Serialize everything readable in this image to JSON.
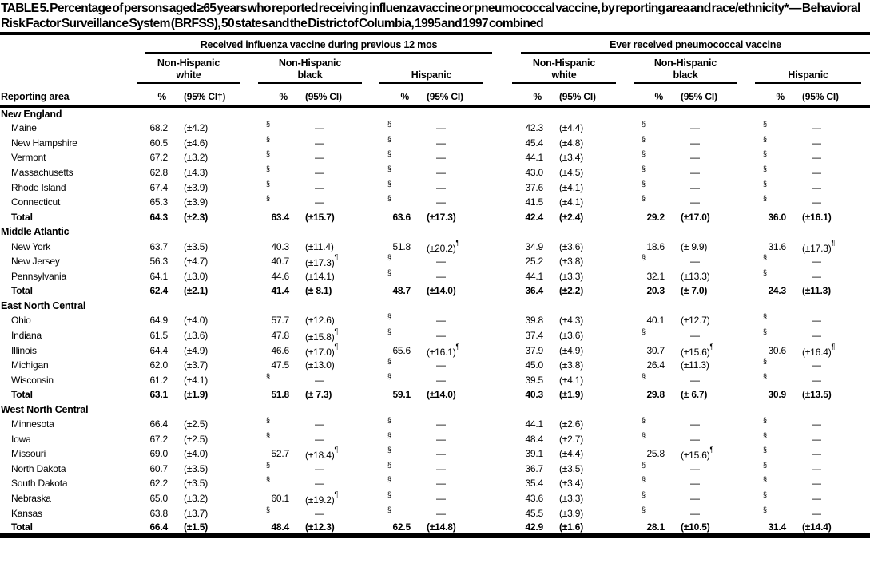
{
  "title": "TABLE 5. Percentage of persons aged ≥65 years who reported receiving influenza vaccine or pneumococcal vaccine, by reporting area and race/ethnicity* — Behavioral Risk Factor Surveillance System (BRFSS), 50 states and the District of Columbia, 1995 and 1997 combined",
  "table": {
    "reporting_area_header": "Reporting area",
    "groups": [
      {
        "label": "Received influenza vaccine during previous 12 mos",
        "subgroups": [
          {
            "label_lines": [
              "Non-Hispanic",
              "white"
            ],
            "pct": "%",
            "ci": "(95% CI†)"
          },
          {
            "label_lines": [
              "Non-Hispanic",
              "black"
            ],
            "pct": "%",
            "ci": "(95% CI)"
          },
          {
            "label_lines": [
              "Hispanic"
            ],
            "pct": "%",
            "ci": "(95% CI)"
          }
        ]
      },
      {
        "label": "Ever received pneumococcal vaccine",
        "subgroups": [
          {
            "label_lines": [
              "Non-Hispanic",
              "white"
            ],
            "pct": "%",
            "ci": "(95% CI)"
          },
          {
            "label_lines": [
              "Non-Hispanic",
              "black"
            ],
            "pct": "%",
            "ci": "(95% CI)"
          },
          {
            "label_lines": [
              "Hispanic"
            ],
            "pct": "%",
            "ci": "(95% CI)"
          }
        ]
      }
    ],
    "footnote_symbols": {
      "suppressed": "§",
      "no_estimate": "—",
      "wide_ci": "¶",
      "ci_note": "†"
    },
    "sections": [
      {
        "name": "New England",
        "rows": [
          {
            "area": "Maine",
            "bold": false,
            "cells": [
              "68.2",
              "(±4.2)",
              "§",
              "—",
              "§",
              "—",
              "42.3",
              "(±4.4)",
              "§",
              "—",
              "§",
              "—"
            ]
          },
          {
            "area": "New Hampshire",
            "bold": false,
            "cells": [
              "60.5",
              "(±4.6)",
              "§",
              "—",
              "§",
              "—",
              "45.4",
              "(±4.8)",
              "§",
              "—",
              "§",
              "—"
            ]
          },
          {
            "area": "Vermont",
            "bold": false,
            "cells": [
              "67.2",
              "(±3.2)",
              "§",
              "—",
              "§",
              "—",
              "44.1",
              "(±3.4)",
              "§",
              "—",
              "§",
              "—"
            ]
          },
          {
            "area": "Massachusetts",
            "bold": false,
            "cells": [
              "62.8",
              "(±4.3)",
              "§",
              "—",
              "§",
              "—",
              "43.0",
              "(±4.5)",
              "§",
              "—",
              "§",
              "—"
            ]
          },
          {
            "area": "Rhode Island",
            "bold": false,
            "cells": [
              "67.4",
              "(±3.9)",
              "§",
              "—",
              "§",
              "—",
              "37.6",
              "(±4.1)",
              "§",
              "—",
              "§",
              "—"
            ]
          },
          {
            "area": "Connecticut",
            "bold": false,
            "cells": [
              "65.3",
              "(±3.9)",
              "§",
              "—",
              "§",
              "—",
              "41.5",
              "(±4.1)",
              "§",
              "—",
              "§",
              "—"
            ]
          },
          {
            "area": "Total",
            "bold": true,
            "cells": [
              "64.3",
              "(±2.3)",
              "63.4",
              "(±15.7)",
              "63.6",
              "(±17.3)",
              "42.4",
              "(±2.4)",
              "29.2",
              "(±17.0)",
              "36.0",
              "(±16.1)"
            ]
          }
        ]
      },
      {
        "name": "Middle Atlantic",
        "rows": [
          {
            "area": "New York",
            "bold": false,
            "cells": [
              "63.7",
              "(±3.5)",
              "40.3",
              "(±11.4)",
              "51.8",
              "(±20.2)¶",
              "34.9",
              "(±3.6)",
              "18.6",
              "(± 9.9)",
              "31.6",
              "(±17.3)¶"
            ]
          },
          {
            "area": "New Jersey",
            "bold": false,
            "cells": [
              "56.3",
              "(±4.7)",
              "40.7",
              "(±17.3)¶",
              "§",
              "—",
              "25.2",
              "(±3.8)",
              "§",
              "—",
              "§",
              "—"
            ]
          },
          {
            "area": "Pennsylvania",
            "bold": false,
            "cells": [
              "64.1",
              "(±3.0)",
              "44.6",
              "(±14.1)",
              "§",
              "—",
              "44.1",
              "(±3.3)",
              "32.1",
              "(±13.3)",
              "§",
              "—"
            ]
          },
          {
            "area": "Total",
            "bold": true,
            "cells": [
              "62.4",
              "(±2.1)",
              "41.4",
              "(± 8.1)",
              "48.7",
              "(±14.0)",
              "36.4",
              "(±2.2)",
              "20.3",
              "(± 7.0)",
              "24.3",
              "(±11.3)"
            ]
          }
        ]
      },
      {
        "name": "East North Central",
        "rows": [
          {
            "area": "Ohio",
            "bold": false,
            "cells": [
              "64.9",
              "(±4.0)",
              "57.7",
              "(±12.6)",
              "§",
              "—",
              "39.8",
              "(±4.3)",
              "40.1",
              "(±12.7)",
              "§",
              "—"
            ]
          },
          {
            "area": "Indiana",
            "bold": false,
            "cells": [
              "61.5",
              "(±3.6)",
              "47.8",
              "(±15.8)¶",
              "§",
              "—",
              "37.4",
              "(±3.6)",
              "§",
              "—",
              "§",
              "—"
            ]
          },
          {
            "area": "Illinois",
            "bold": false,
            "cells": [
              "64.4",
              "(±4.9)",
              "46.6",
              "(±17.0)¶",
              "65.6",
              "(±16.1)¶",
              "37.9",
              "(±4.9)",
              "30.7",
              "(±15.6)¶",
              "30.6",
              "(±16.4)¶"
            ]
          },
          {
            "area": "Michigan",
            "bold": false,
            "cells": [
              "62.0",
              "(±3.7)",
              "47.5",
              "(±13.0)",
              "§",
              "—",
              "45.0",
              "(±3.8)",
              "26.4",
              "(±11.3)",
              "§",
              "—"
            ]
          },
          {
            "area": "Wisconsin",
            "bold": false,
            "cells": [
              "61.2",
              "(±4.1)",
              "§",
              "—",
              "§",
              "—",
              "39.5",
              "(±4.1)",
              "§",
              "—",
              "§",
              "—"
            ]
          },
          {
            "area": "Total",
            "bold": true,
            "cells": [
              "63.1",
              "(±1.9)",
              "51.8",
              "(± 7.3)",
              "59.1",
              "(±14.0)",
              "40.3",
              "(±1.9)",
              "29.8",
              "(± 6.7)",
              "30.9",
              "(±13.5)"
            ]
          }
        ]
      },
      {
        "name": "West North Central",
        "rows": [
          {
            "area": "Minnesota",
            "bold": false,
            "cells": [
              "66.4",
              "(±2.5)",
              "§",
              "—",
              "§",
              "—",
              "44.1",
              "(±2.6)",
              "§",
              "—",
              "§",
              "—"
            ]
          },
          {
            "area": "Iowa",
            "bold": false,
            "cells": [
              "67.2",
              "(±2.5)",
              "§",
              "—",
              "§",
              "—",
              "48.4",
              "(±2.7)",
              "§",
              "—",
              "§",
              "—"
            ]
          },
          {
            "area": "Missouri",
            "bold": false,
            "cells": [
              "69.0",
              "(±4.0)",
              "52.7",
              "(±18.4)¶",
              "§",
              "—",
              "39.1",
              "(±4.4)",
              "25.8",
              "(±15.6)¶",
              "§",
              "—"
            ]
          },
          {
            "area": "North Dakota",
            "bold": false,
            "cells": [
              "60.7",
              "(±3.5)",
              "§",
              "—",
              "§",
              "—",
              "36.7",
              "(±3.5)",
              "§",
              "—",
              "§",
              "—"
            ]
          },
          {
            "area": "South Dakota",
            "bold": false,
            "cells": [
              "62.2",
              "(±3.5)",
              "§",
              "—",
              "§",
              "—",
              "35.4",
              "(±3.4)",
              "§",
              "—",
              "§",
              "—"
            ]
          },
          {
            "area": "Nebraska",
            "bold": false,
            "cells": [
              "65.0",
              "(±3.2)",
              "60.1",
              "(±19.2)¶",
              "§",
              "—",
              "43.6",
              "(±3.3)",
              "§",
              "—",
              "§",
              "—"
            ]
          },
          {
            "area": "Kansas",
            "bold": false,
            "cells": [
              "63.8",
              "(±3.7)",
              "§",
              "—",
              "§",
              "—",
              "45.5",
              "(±3.9)",
              "§",
              "—",
              "§",
              "—"
            ]
          },
          {
            "area": "Total",
            "bold": true,
            "cells": [
              "66.4",
              "(±1.5)",
              "48.4",
              "(±12.3)",
              "62.5",
              "(±14.8)",
              "42.9",
              "(±1.6)",
              "28.1",
              "(±10.5)",
              "31.4",
              "(±14.4)"
            ]
          }
        ]
      }
    ]
  }
}
